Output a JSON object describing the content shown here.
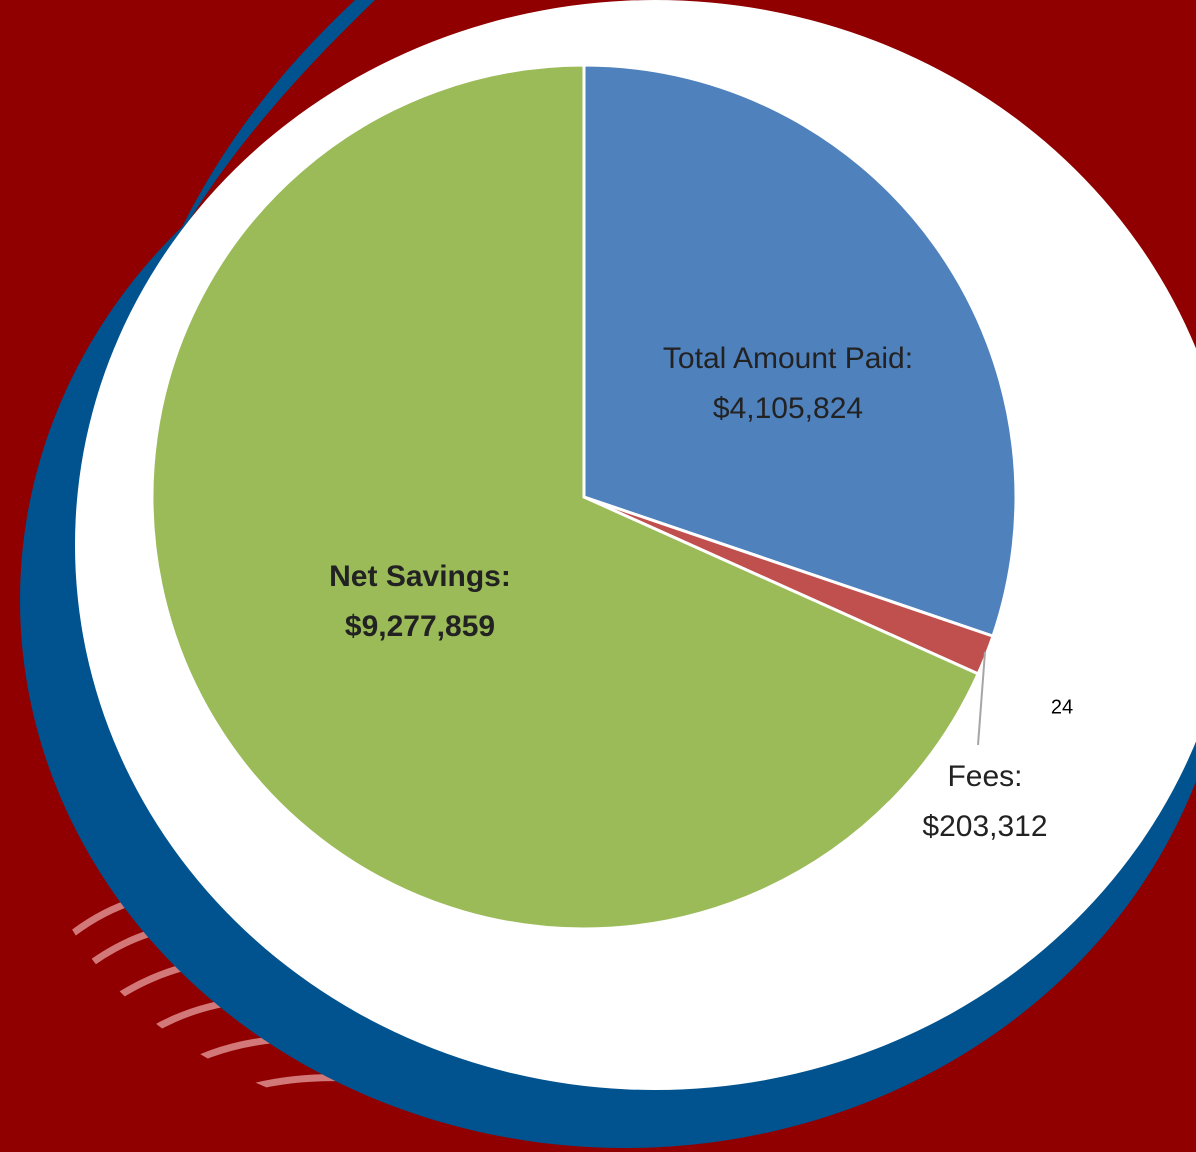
{
  "chart_data": {
    "type": "pie",
    "categories": [
      "Total Amount Paid:",
      "Fees:",
      "Net Savings:"
    ],
    "values": [
      4105824,
      203312,
      9277859
    ],
    "value_labels": [
      "$4,105,824",
      "$203,312",
      "$9,277,859"
    ],
    "colors": [
      "#4f81bd",
      "#c0504d",
      "#9bbb59"
    ]
  },
  "page_number": 24
}
